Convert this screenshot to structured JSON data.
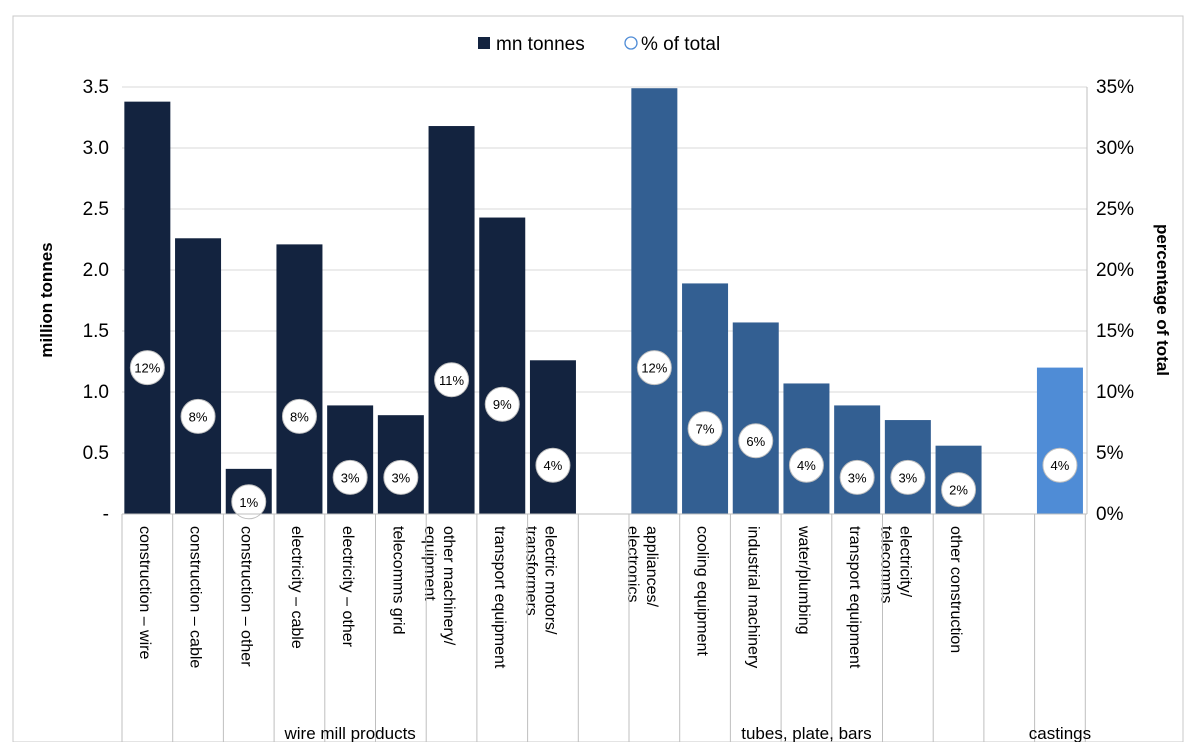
{
  "chart_data": {
    "type": "bar",
    "legend": {
      "position": "top-center",
      "items": [
        {
          "label": "mn tonnes",
          "marker": "square"
        },
        {
          "label": "% of total",
          "marker": "circle"
        }
      ]
    },
    "y_left": {
      "label": "million tonnes",
      "range": [
        0,
        3.5
      ],
      "ticks": [
        "-",
        "0.5",
        "1.0",
        "1.5",
        "2.0",
        "2.5",
        "3.0",
        "3.5"
      ]
    },
    "y_right": {
      "label": "percentage of total",
      "range": [
        0,
        35
      ],
      "ticks": [
        "0%",
        "5%",
        "10%",
        "15%",
        "20%",
        "25%",
        "30%",
        "35%"
      ]
    },
    "grid": true,
    "colors": {
      "wire mill products": "#13233f",
      "tubes, plate, bars": "#335f92",
      "castings": "#4f8cd6"
    },
    "groups": [
      {
        "name": "wire mill products",
        "categories": [
          {
            "label": "construction – wire",
            "value": 3.38,
            "pct": "12%",
            "pct_value": 12
          },
          {
            "label": "construction – cable",
            "value": 2.26,
            "pct": "8%",
            "pct_value": 8
          },
          {
            "label": "construction – other",
            "value": 0.37,
            "pct": "1%",
            "pct_value": 1
          },
          {
            "label": "electricity – cable",
            "value": 2.21,
            "pct": "8%",
            "pct_value": 8
          },
          {
            "label": "electricity – other",
            "value": 0.89,
            "pct": "3%",
            "pct_value": 3
          },
          {
            "label": "telecomms grid",
            "value": 0.81,
            "pct": "3%",
            "pct_value": 3
          },
          {
            "label": "other machinery/ equipment",
            "value": 3.18,
            "pct": "11%",
            "pct_value": 11
          },
          {
            "label": "transport equipment",
            "value": 2.43,
            "pct": "9%",
            "pct_value": 9
          },
          {
            "label": "electric motors/ transformers",
            "value": 1.26,
            "pct": "4%",
            "pct_value": 4
          }
        ]
      },
      {
        "name": "tubes, plate, bars",
        "categories": [
          {
            "label": "appliances/ electronics",
            "value": 3.49,
            "pct": "12%",
            "pct_value": 12
          },
          {
            "label": "cooling equipment",
            "value": 1.89,
            "pct": "7%",
            "pct_value": 7
          },
          {
            "label": "industrial machinery",
            "value": 1.57,
            "pct": "6%",
            "pct_value": 6
          },
          {
            "label": "water/plumbing",
            "value": 1.07,
            "pct": "4%",
            "pct_value": 4
          },
          {
            "label": "transport equipment",
            "value": 0.89,
            "pct": "3%",
            "pct_value": 3
          },
          {
            "label": "electricity/ telecomms",
            "value": 0.77,
            "pct": "3%",
            "pct_value": 3
          },
          {
            "label": "other construction",
            "value": 0.56,
            "pct": "2%",
            "pct_value": 2
          }
        ]
      },
      {
        "name": "castings",
        "categories": [
          {
            "label": "",
            "value": 1.2,
            "pct": "4%",
            "pct_value": 4
          }
        ]
      }
    ]
  }
}
